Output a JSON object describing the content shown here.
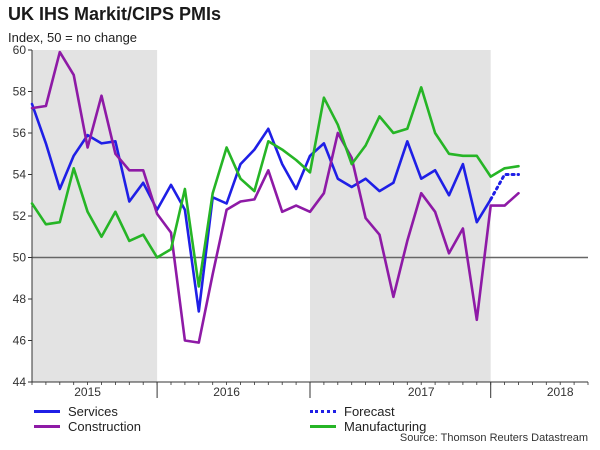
{
  "title": "UK IHS Markit/CIPS PMIs",
  "subtitle": "Index, 50 = no change",
  "source": "Source: Thomson Reuters Datastream",
  "colors": {
    "services": "#1f1fe6",
    "construction": "#8e1aa6",
    "manufacturing": "#26b526",
    "shade": "#e3e3e3",
    "baseline": "#666666",
    "axis": "#333333"
  },
  "chart_data": {
    "type": "line",
    "title": "UK IHS Markit/CIPS PMIs",
    "subtitle": "Index, 50 = no change",
    "ylim": [
      44,
      60
    ],
    "yticks": [
      44,
      46,
      48,
      50,
      52,
      54,
      56,
      58,
      60
    ],
    "x_index_range": [
      0,
      40
    ],
    "year_labels": [
      {
        "label": "2015",
        "center_index": 4
      },
      {
        "label": "2016",
        "center_index": 14
      },
      {
        "label": "2017",
        "center_index": 28
      },
      {
        "label": "2018",
        "center_index": 38
      }
    ],
    "year_boundaries": [
      9,
      20,
      33
    ],
    "shaded_index_ranges": [
      [
        0,
        9
      ],
      [
        20,
        33
      ]
    ],
    "baseline": 50,
    "grid": false,
    "legend_position": "bottom",
    "series": [
      {
        "name": "Services",
        "key": "services",
        "style": "solid",
        "values": [
          57.4,
          55.5,
          53.3,
          54.9,
          55.9,
          55.5,
          55.6,
          52.7,
          53.6,
          52.3,
          53.5,
          52.3,
          47.4,
          52.9,
          52.6,
          54.5,
          55.2,
          56.2,
          54.5,
          53.3,
          54.9,
          55.5,
          53.8,
          53.4,
          53.8,
          53.2,
          53.6,
          55.6,
          53.8,
          54.2,
          53.0,
          54.5,
          51.7,
          52.8
        ]
      },
      {
        "name": "Forecast",
        "key": "forecast",
        "style": "dotted",
        "x_start_index": 33,
        "values": [
          52.8,
          54.0,
          54.0
        ]
      },
      {
        "name": "Construction",
        "key": "construction",
        "style": "solid",
        "values": [
          57.2,
          57.3,
          59.9,
          58.8,
          55.3,
          57.8,
          55.0,
          54.2,
          54.2,
          52.1,
          51.2,
          46.0,
          45.9,
          49.2,
          52.3,
          52.7,
          52.8,
          54.2,
          52.2,
          52.5,
          52.2,
          53.1,
          56.0,
          54.8,
          51.9,
          51.1,
          48.1,
          50.8,
          53.1,
          52.2,
          50.2,
          51.4,
          47.0,
          52.5,
          52.5,
          53.1
        ]
      },
      {
        "name": "Manufacturing",
        "key": "manufacturing",
        "style": "solid",
        "values": [
          52.6,
          51.6,
          51.7,
          54.3,
          52.2,
          51.0,
          52.2,
          50.8,
          51.1,
          50.0,
          50.4,
          53.3,
          48.6,
          53.1,
          55.3,
          53.8,
          53.2,
          55.6,
          55.2,
          54.7,
          54.1,
          57.7,
          56.4,
          54.5,
          55.4,
          56.8,
          56.0,
          56.2,
          58.2,
          56.0,
          55.0,
          54.9,
          54.9,
          53.9,
          54.3,
          54.4
        ]
      }
    ]
  },
  "legend": [
    {
      "label": "Services",
      "key": "services",
      "style": "solid"
    },
    {
      "label": "Forecast",
      "key": "services",
      "style": "dotted"
    },
    {
      "label": "Construction",
      "key": "construction",
      "style": "solid"
    },
    {
      "label": "Manufacturing",
      "key": "manufacturing",
      "style": "solid"
    }
  ]
}
